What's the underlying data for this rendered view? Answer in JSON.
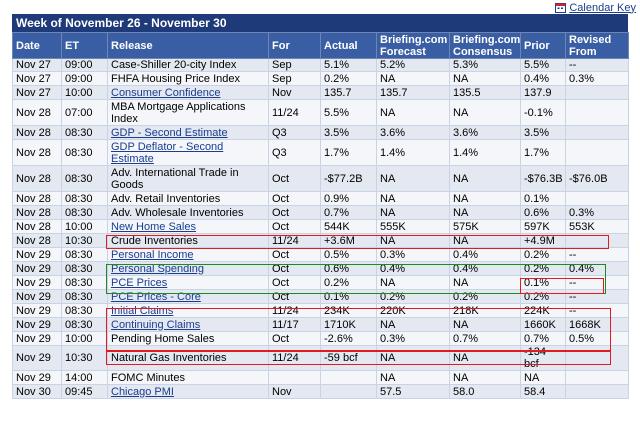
{
  "calendar_key": {
    "label": "Calendar Key",
    "icon": "calendar-icon"
  },
  "week_title": "Week of November 26 - November 30",
  "columns": [
    "Date",
    "ET",
    "Release",
    "For",
    "Actual",
    "Briefing.com Forecast",
    "Briefing.com Consensus",
    "Prior",
    "Revised From"
  ],
  "rows": [
    {
      "date": "Nov 27",
      "et": "09:00",
      "release": "Case-Shiller 20-city Index",
      "link": false,
      "for": "Sep",
      "actual": "5.1%",
      "forecast": "5.2%",
      "consensus": "5.3%",
      "prior": "5.5%",
      "revised": "--"
    },
    {
      "date": "Nov 27",
      "et": "09:00",
      "release": "FHFA Housing Price Index",
      "link": false,
      "for": "Sep",
      "actual": "0.2%",
      "forecast": "NA",
      "consensus": "NA",
      "prior": "0.4%",
      "revised": "0.3%"
    },
    {
      "date": "Nov 27",
      "et": "10:00",
      "release": "Consumer Confidence",
      "link": true,
      "for": "Nov",
      "actual": "135.7",
      "forecast": "135.7",
      "consensus": "135.5",
      "prior": "137.9",
      "revised": ""
    },
    {
      "date": "Nov 28",
      "et": "07:00",
      "release": "MBA Mortgage Applications Index",
      "link": false,
      "for": "11/24",
      "actual": "5.5%",
      "forecast": "NA",
      "consensus": "NA",
      "prior": "-0.1%",
      "revised": ""
    },
    {
      "date": "Nov 28",
      "et": "08:30",
      "release": "GDP - Second Estimate",
      "link": true,
      "for": "Q3",
      "actual": "3.5%",
      "forecast": "3.6%",
      "consensus": "3.6%",
      "prior": "3.5%",
      "revised": ""
    },
    {
      "date": "Nov 28",
      "et": "08:30",
      "release": "GDP Deflator - Second Estimate",
      "link": true,
      "for": "Q3",
      "actual": "1.7%",
      "forecast": "1.4%",
      "consensus": "1.4%",
      "prior": "1.7%",
      "revised": ""
    },
    {
      "date": "Nov 28",
      "et": "08:30",
      "release": "Adv. International Trade in Goods",
      "link": false,
      "for": "Oct",
      "actual": "-$77.2B",
      "forecast": "NA",
      "consensus": "NA",
      "prior": "-$76.3B",
      "revised": "-$76.0B"
    },
    {
      "date": "Nov 28",
      "et": "08:30",
      "release": "Adv. Retail Inventories",
      "link": false,
      "for": "Oct",
      "actual": "0.9%",
      "forecast": "NA",
      "consensus": "NA",
      "prior": "0.1%",
      "revised": ""
    },
    {
      "date": "Nov 28",
      "et": "08:30",
      "release": "Adv. Wholesale Inventories",
      "link": false,
      "for": "Oct",
      "actual": "0.7%",
      "forecast": "NA",
      "consensus": "NA",
      "prior": "0.6%",
      "revised": "0.3%"
    },
    {
      "date": "Nov 28",
      "et": "10:00",
      "release": "New Home Sales",
      "link": true,
      "for": "Oct",
      "actual": "544K",
      "forecast": "555K",
      "consensus": "575K",
      "prior": "597K",
      "revised": "553K"
    },
    {
      "date": "Nov 28",
      "et": "10:30",
      "release": "Crude Inventories",
      "link": false,
      "for": "11/24",
      "actual": "+3.6M",
      "forecast": "NA",
      "consensus": "NA",
      "prior": "+4.9M",
      "revised": ""
    },
    {
      "date": "Nov 29",
      "et": "08:30",
      "release": "Personal Income",
      "link": true,
      "for": "Oct",
      "actual": "0.5%",
      "forecast": "0.3%",
      "consensus": "0.4%",
      "prior": "0.2%",
      "revised": "--"
    },
    {
      "date": "Nov 29",
      "et": "08:30",
      "release": "Personal Spending",
      "link": true,
      "for": "Oct",
      "actual": "0.6%",
      "forecast": "0.4%",
      "consensus": "0.4%",
      "prior": "0.2%",
      "revised": "0.4%"
    },
    {
      "date": "Nov 29",
      "et": "08:30",
      "release": "PCE Prices",
      "link": true,
      "for": "Oct",
      "actual": "0.2%",
      "forecast": "NA",
      "consensus": "NA",
      "prior": "0.1%",
      "revised": "--"
    },
    {
      "date": "Nov 29",
      "et": "08:30",
      "release": "PCE Prices - Core",
      "link": true,
      "for": "Oct",
      "actual": "0.1%",
      "forecast": "0.2%",
      "consensus": "0.2%",
      "prior": "0.2%",
      "revised": "--"
    },
    {
      "date": "Nov 29",
      "et": "08:30",
      "release": "Initial Claims",
      "link": true,
      "for": "11/24",
      "actual": "234K",
      "forecast": "220K",
      "consensus": "218K",
      "prior": "224K",
      "revised": "--"
    },
    {
      "date": "Nov 29",
      "et": "08:30",
      "release": "Continuing Claims",
      "link": true,
      "for": "11/17",
      "actual": "1710K",
      "forecast": "NA",
      "consensus": "NA",
      "prior": "1660K",
      "revised": "1668K"
    },
    {
      "date": "Nov 29",
      "et": "10:00",
      "release": "Pending Home Sales",
      "link": false,
      "for": "Oct",
      "actual": "-2.6%",
      "forecast": "0.3%",
      "consensus": "0.7%",
      "prior": "0.7%",
      "revised": "0.5%"
    },
    {
      "date": "Nov 29",
      "et": "10:30",
      "release": "Natural Gas Inventories",
      "link": false,
      "for": "11/24",
      "actual": "-59 bcf",
      "forecast": "NA",
      "consensus": "NA",
      "prior": "-134 bcf",
      "revised": ""
    },
    {
      "date": "Nov 29",
      "et": "14:00",
      "release": "FOMC Minutes",
      "link": false,
      "for": "",
      "actual": "",
      "forecast": "NA",
      "consensus": "NA",
      "prior": "NA",
      "revised": ""
    },
    {
      "date": "Nov 30",
      "et": "09:45",
      "release": "Chicago PMI",
      "link": true,
      "for": "Nov",
      "actual": "",
      "forecast": "57.5",
      "consensus": "58.0",
      "prior": "58.4",
      "revised": ""
    }
  ],
  "colors": {
    "header_dark": "#1e3a78",
    "header": "#3a5ea3",
    "row_odd": "#e3e8f1",
    "row_even": "#f4f6fa",
    "link": "#1a3d8f",
    "highlight_red": "#e21b23",
    "highlight_green": "#1e8a1e"
  }
}
